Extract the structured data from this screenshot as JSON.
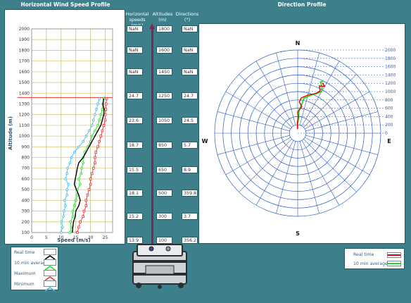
{
  "left_panel": {
    "title": "Horizontal Wind Speed Profile",
    "ylabel": "Altitude (m)",
    "xlabel": "Speed (m/s)",
    "yticks": [
      "100",
      "200",
      "300",
      "400",
      "500",
      "600",
      "700",
      "800",
      "900",
      "1000",
      "1100",
      "1200",
      "1300",
      "1400",
      "1500",
      "1600",
      "1700",
      "1800",
      "1900",
      "2000"
    ],
    "xticks": [
      "0",
      "5",
      "10",
      "15",
      "20",
      "25"
    ]
  },
  "center": {
    "headers": {
      "speeds": "Horizontal speeds (m/s)",
      "altitudes": "Altitudes (m)",
      "directions": "Directions (°)"
    },
    "rows": [
      {
        "speed": "NaN",
        "altitude": "1800",
        "direction": "NaN"
      },
      {
        "speed": "NaN",
        "altitude": "1600",
        "direction": "NaN"
      },
      {
        "speed": "NaN",
        "altitude": "1450",
        "direction": "NaN"
      },
      {
        "speed": "24.7",
        "altitude": "1250",
        "direction": "24.7"
      },
      {
        "speed": "23.6",
        "altitude": "1050",
        "direction": "24.5"
      },
      {
        "speed": "18.7",
        "altitude": "850",
        "direction": "5.7"
      },
      {
        "speed": "15.5",
        "altitude": "650",
        "direction": "8.9"
      },
      {
        "speed": "18.1",
        "altitude": "500",
        "direction": "359.8"
      },
      {
        "speed": "15.2",
        "altitude": "300",
        "direction": "3.7"
      },
      {
        "speed": "13.9",
        "altitude": "100",
        "direction": "356.2"
      }
    ]
  },
  "right_panel": {
    "title": "Direction Profile",
    "compass": {
      "n": "N",
      "e": "E",
      "s": "S",
      "w": "W"
    },
    "rings": [
      "0",
      "200",
      "400",
      "600",
      "800",
      "1000",
      "1200",
      "1400",
      "1600",
      "1800",
      "2000"
    ]
  },
  "left_legend": [
    {
      "label": "Real time",
      "color": "#000000"
    },
    {
      "label": "10 min average",
      "color": "#22dd22"
    },
    {
      "label": "Maximum",
      "color": "#ee3333"
    },
    {
      "label": "Minimum",
      "color": "#44bbee"
    }
  ],
  "right_legend": [
    {
      "label": "Real time",
      "color": "#dd0000"
    },
    {
      "label": "10 min average",
      "color": "#22dd22"
    }
  ],
  "colors": {
    "background": "#3d7f8b",
    "grid_h": "#d8c87a",
    "grid_v": "#b8c890",
    "polar_grid": "#2a5cc4",
    "altitude_marker": "#ee3333",
    "mast": "#7a2a55"
  }
}
